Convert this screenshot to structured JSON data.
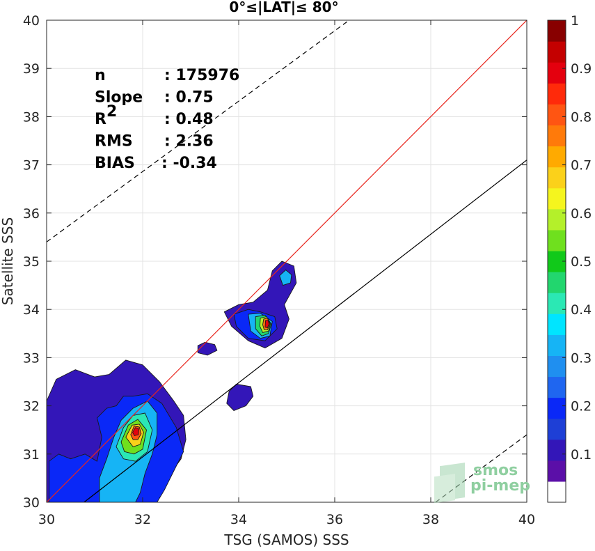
{
  "chart_data": {
    "type": "heatmap",
    "title": "0°≤|LAT|≤ 80°",
    "xlabel": "TSG (SAMOS) SSS",
    "ylabel": "Satellite SSS",
    "xlim": [
      30,
      40
    ],
    "ylim": [
      30,
      40
    ],
    "x_ticks": [
      "30",
      "32",
      "34",
      "36",
      "38",
      "40"
    ],
    "y_ticks": [
      "30",
      "31",
      "32",
      "33",
      "34",
      "35",
      "36",
      "37",
      "38",
      "39",
      "40"
    ],
    "grid": true,
    "stats": [
      {
        "label": "n",
        "value": ": 175976"
      },
      {
        "label": "Slope",
        "value": ": 0.75"
      },
      {
        "label": "R",
        "superscript": "2",
        "value": ": 0.48"
      },
      {
        "label": "RMS",
        "value": ": 2.36"
      },
      {
        "label": "BIAS",
        "value": ": -0.34"
      }
    ],
    "reference_lines": [
      {
        "kind": "identity",
        "color": "#e8261e",
        "style": "solid",
        "x1": 30,
        "y1": 30,
        "x2": 40,
        "y2": 40
      },
      {
        "kind": "fit",
        "color": "#000000",
        "style": "solid",
        "x1": 30,
        "y1": 29.4,
        "x2": 40,
        "y2": 37.1
      },
      {
        "kind": "upper-bound",
        "color": "#000000",
        "style": "dashed",
        "x1": 30,
        "y1": 35.4,
        "x2": 36.3,
        "y2": 40
      },
      {
        "kind": "lower-bound",
        "color": "#000000",
        "style": "dashed",
        "x1": 38.1,
        "y1": 30,
        "x2": 40,
        "y2": 31.4
      }
    ],
    "density_blobs": [
      {
        "name": "low-salinity-cluster",
        "level": 0.1,
        "points": [
          [
            30,
            31.1
          ],
          [
            30,
            32.1
          ],
          [
            30.2,
            32.55
          ],
          [
            30.6,
            32.75
          ],
          [
            31.0,
            32.6
          ],
          [
            31.3,
            32.65
          ],
          [
            31.65,
            32.95
          ],
          [
            32.0,
            32.85
          ],
          [
            32.35,
            32.5
          ],
          [
            32.65,
            32.1
          ],
          [
            32.85,
            31.8
          ],
          [
            32.9,
            31.3
          ],
          [
            32.8,
            30.9
          ],
          [
            32.55,
            30.55
          ],
          [
            32.4,
            30.3
          ],
          [
            32.1,
            30.1
          ],
          [
            32.15,
            30.0
          ],
          [
            30.0,
            30.0
          ]
        ]
      },
      {
        "name": "low-salinity-cluster",
        "level": 0.2,
        "points": [
          [
            30.05,
            30.05
          ],
          [
            30.05,
            30.85
          ],
          [
            30.25,
            31.0
          ],
          [
            30.5,
            30.9
          ],
          [
            30.8,
            31.0
          ],
          [
            31.05,
            30.85
          ],
          [
            31.15,
            31.35
          ],
          [
            31.05,
            31.75
          ],
          [
            31.25,
            31.95
          ],
          [
            31.45,
            32.0
          ],
          [
            31.6,
            32.2
          ],
          [
            31.8,
            32.2
          ],
          [
            32.1,
            32.25
          ],
          [
            32.4,
            32.05
          ],
          [
            32.7,
            31.55
          ],
          [
            32.85,
            31.05
          ],
          [
            32.65,
            30.65
          ],
          [
            32.45,
            30.25
          ],
          [
            32.3,
            30.0
          ],
          [
            30.05,
            30.0
          ]
        ]
      },
      {
        "name": "low-salinity-cluster",
        "level": 0.3,
        "points": [
          [
            31.1,
            30.05
          ],
          [
            31.1,
            30.5
          ],
          [
            31.25,
            30.9
          ],
          [
            31.4,
            31.35
          ],
          [
            31.55,
            31.7
          ],
          [
            31.8,
            31.95
          ],
          [
            32.1,
            32.1
          ],
          [
            32.3,
            31.85
          ],
          [
            32.3,
            31.4
          ],
          [
            32.2,
            31.0
          ],
          [
            32.05,
            30.6
          ],
          [
            31.95,
            30.2
          ],
          [
            31.85,
            30.0
          ],
          [
            31.1,
            30.0
          ]
        ]
      },
      {
        "name": "low-salinity-cluster",
        "level": 0.4,
        "points": [
          [
            31.45,
            31.15
          ],
          [
            31.6,
            31.55
          ],
          [
            31.8,
            31.8
          ],
          [
            32.05,
            31.85
          ],
          [
            32.2,
            31.5
          ],
          [
            32.1,
            31.05
          ],
          [
            31.85,
            30.85
          ],
          [
            31.6,
            30.9
          ]
        ]
      },
      {
        "name": "low-salinity-cluster",
        "level": 0.55,
        "points": [
          [
            31.55,
            31.25
          ],
          [
            31.7,
            31.6
          ],
          [
            31.9,
            31.72
          ],
          [
            32.08,
            31.5
          ],
          [
            32.0,
            31.1
          ],
          [
            31.82,
            31.0
          ],
          [
            31.62,
            31.05
          ]
        ]
      },
      {
        "name": "low-salinity-cluster",
        "level": 0.7,
        "points": [
          [
            31.65,
            31.35
          ],
          [
            31.78,
            31.6
          ],
          [
            31.93,
            31.62
          ],
          [
            32.02,
            31.45
          ],
          [
            31.95,
            31.2
          ],
          [
            31.8,
            31.15
          ]
        ]
      },
      {
        "name": "low-salinity-cluster",
        "level": 0.8,
        "points": [
          [
            31.75,
            31.4
          ],
          [
            31.82,
            31.58
          ],
          [
            31.93,
            31.56
          ],
          [
            31.97,
            31.42
          ],
          [
            31.9,
            31.3
          ],
          [
            31.8,
            31.3
          ]
        ]
      },
      {
        "name": "low-salinity-cluster",
        "level": 0.9,
        "points": [
          [
            31.79,
            31.45
          ],
          [
            31.85,
            31.55
          ],
          [
            31.92,
            31.52
          ],
          [
            31.91,
            31.4
          ],
          [
            31.83,
            31.38
          ]
        ]
      },
      {
        "name": "small-patch-a",
        "level": 0.1,
        "points": [
          [
            33.15,
            33.25
          ],
          [
            33.3,
            33.32
          ],
          [
            33.5,
            33.27
          ],
          [
            33.55,
            33.15
          ],
          [
            33.35,
            33.05
          ],
          [
            33.15,
            33.1
          ]
        ]
      },
      {
        "name": "small-patch-b",
        "level": 0.1,
        "points": [
          [
            33.8,
            32.3
          ],
          [
            33.95,
            32.45
          ],
          [
            34.25,
            32.4
          ],
          [
            34.3,
            32.2
          ],
          [
            34.15,
            32.0
          ],
          [
            33.9,
            31.9
          ],
          [
            33.75,
            32.05
          ]
        ]
      },
      {
        "name": "high-salinity-cluster",
        "level": 0.1,
        "points": [
          [
            33.7,
            33.95
          ],
          [
            34.0,
            34.1
          ],
          [
            34.3,
            34.15
          ],
          [
            34.6,
            34.4
          ],
          [
            34.7,
            34.8
          ],
          [
            34.9,
            35.0
          ],
          [
            35.15,
            34.9
          ],
          [
            35.2,
            34.55
          ],
          [
            34.95,
            34.1
          ],
          [
            35.05,
            33.8
          ],
          [
            34.9,
            33.4
          ],
          [
            34.55,
            33.2
          ],
          [
            34.2,
            33.35
          ],
          [
            33.85,
            33.65
          ]
        ]
      },
      {
        "name": "high-salinity-cluster",
        "level": 0.2,
        "points": [
          [
            33.9,
            33.9
          ],
          [
            34.2,
            34.0
          ],
          [
            34.45,
            33.95
          ],
          [
            34.75,
            33.85
          ],
          [
            34.8,
            33.6
          ],
          [
            34.55,
            33.35
          ],
          [
            34.2,
            33.4
          ],
          [
            33.95,
            33.65
          ]
        ]
      },
      {
        "name": "high-salinity-cluster",
        "level": 0.3,
        "points": [
          [
            34.2,
            33.9
          ],
          [
            34.45,
            33.92
          ],
          [
            34.7,
            33.75
          ],
          [
            34.65,
            33.45
          ],
          [
            34.45,
            33.4
          ],
          [
            34.25,
            33.55
          ]
        ]
      },
      {
        "name": "high-salinity-cluster",
        "level": 0.45,
        "points": [
          [
            34.35,
            33.85
          ],
          [
            34.55,
            33.88
          ],
          [
            34.68,
            33.7
          ],
          [
            34.62,
            33.5
          ],
          [
            34.48,
            33.45
          ],
          [
            34.35,
            33.6
          ]
        ]
      },
      {
        "name": "high-salinity-cluster",
        "level": 0.6,
        "points": [
          [
            34.45,
            33.82
          ],
          [
            34.58,
            33.85
          ],
          [
            34.66,
            33.7
          ],
          [
            34.62,
            33.55
          ],
          [
            34.5,
            33.52
          ],
          [
            34.44,
            33.65
          ]
        ]
      },
      {
        "name": "high-salinity-cluster",
        "level": 0.75,
        "points": [
          [
            34.52,
            33.8
          ],
          [
            34.6,
            33.82
          ],
          [
            34.65,
            33.7
          ],
          [
            34.6,
            33.58
          ],
          [
            34.53,
            33.58
          ],
          [
            34.5,
            33.68
          ]
        ]
      },
      {
        "name": "high-salinity-cluster",
        "level": 0.9,
        "points": [
          [
            34.56,
            33.77
          ],
          [
            34.61,
            33.78
          ],
          [
            34.63,
            33.7
          ],
          [
            34.6,
            33.62
          ],
          [
            34.55,
            33.63
          ]
        ]
      },
      {
        "name": "high-salinity-cluster",
        "level": 0.3,
        "points": [
          [
            34.85,
            34.7
          ],
          [
            34.98,
            34.82
          ],
          [
            35.1,
            34.72
          ],
          [
            35.08,
            34.55
          ],
          [
            34.92,
            34.5
          ]
        ]
      }
    ],
    "colorbar": {
      "min": 0,
      "max": 1,
      "tick_labels": [
        "0.1",
        "0.2",
        "0.3",
        "0.4",
        "0.5",
        "0.6",
        "0.7",
        "0.8",
        "0.9",
        "1"
      ],
      "tick_values": [
        0.1,
        0.2,
        0.3,
        0.4,
        0.5,
        0.6,
        0.7,
        0.8,
        0.9,
        1.0
      ],
      "colors": [
        "#ffffff",
        "#5b0fa8",
        "#3316b8",
        "#1e3fd6",
        "#0a28f7",
        "#1f66f0",
        "#1f8ff0",
        "#16b4f5",
        "#00e5ff",
        "#2be8b4",
        "#22d66e",
        "#11c91a",
        "#6fe01e",
        "#b4f02a",
        "#f5f51e",
        "#fbd11a",
        "#ffaa00",
        "#ff7a0a",
        "#ff5512",
        "#ff2a0a",
        "#e4000e",
        "#c40000",
        "#880000"
      ]
    }
  },
  "logo": {
    "line1": "smos",
    "line2": "pi-mep"
  }
}
